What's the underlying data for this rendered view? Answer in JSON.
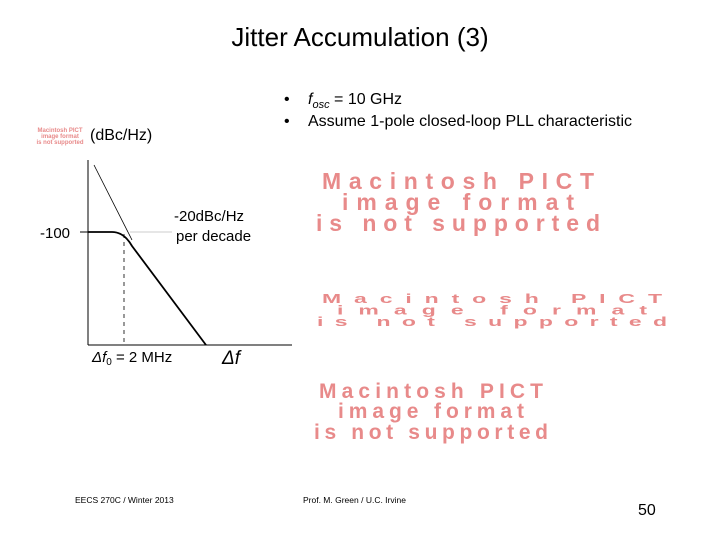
{
  "title": "Jitter Accumulation (3)",
  "bullets": [
    {
      "parts": [
        "f",
        "osc",
        " = 10 GHz"
      ]
    },
    {
      "text": "Assume 1-pole closed-loop PLL characteristic"
    }
  ],
  "plot": {
    "y_unit": "(dBc/Hz)",
    "y_level": "-100",
    "slope_label": [
      "-20dBc/Hz",
      "per decade"
    ],
    "corner_label": [
      "Δf",
      "0",
      " = 2 MHz"
    ],
    "x_label": "Δf"
  },
  "placeholders": [
    [
      "Macintosh PICT",
      "image format",
      "is not supported"
    ],
    [
      "Macintosh PICT",
      "image format",
      "is not supported"
    ],
    [
      "Macintosh PICT",
      "image format",
      "is not supported"
    ],
    [
      "Macintosh PICT",
      "image format",
      "is not supported"
    ]
  ],
  "footer": {
    "left": "EECS 270C / Winter 2013",
    "center": "Prof. M. Green / U.C. Irvine",
    "page": "50"
  }
}
